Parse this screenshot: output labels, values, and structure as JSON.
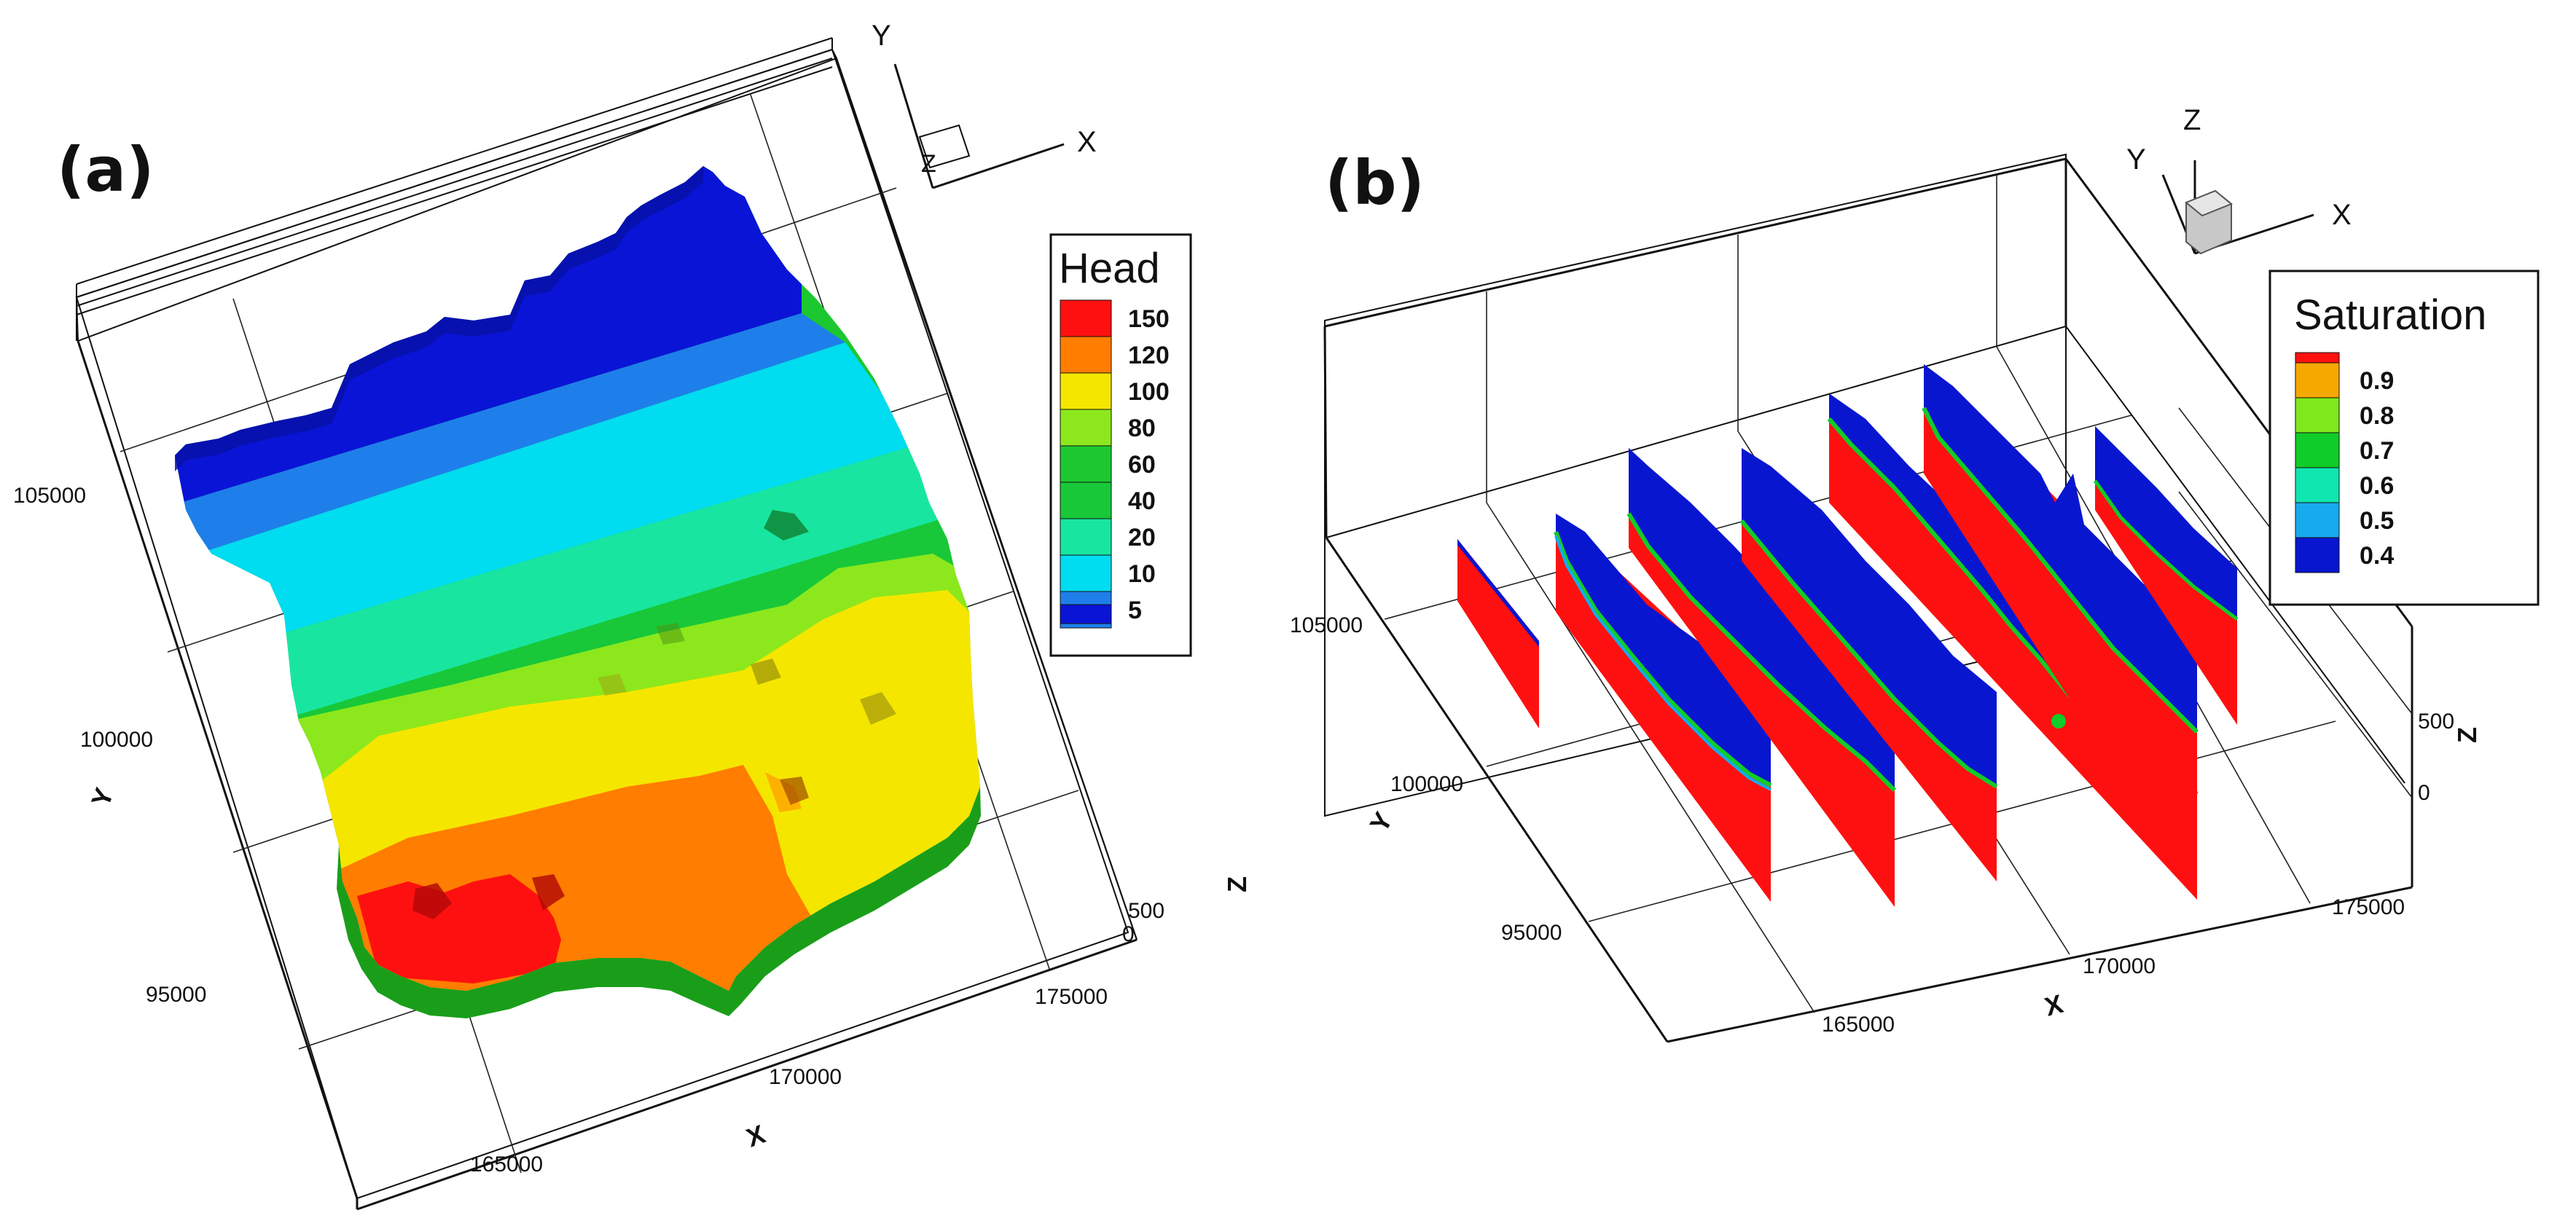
{
  "colors": {
    "dark_blue": "#0a14d6",
    "blue": "#1e7fea",
    "cyan": "#00dcf0",
    "aqua": "#00eed0",
    "teal": "#18e6a0",
    "green": "#1cc830",
    "yellow_green": "#8ce81c",
    "yellow": "#f5e600",
    "orange": "#ff7d00",
    "red": "#ff1010",
    "sat_orange": "#f5a800",
    "sat_ygreen": "#7ee81c",
    "sat_green": "#10cc28",
    "sat_teal": "#10e6b0",
    "sat_blue": "#16aaee",
    "sat_dblue": "#0816d0",
    "bed_green": "#1a9e1a"
  },
  "panel_a": {
    "label": "(a)",
    "legend": {
      "title": "Head",
      "entries": [
        {
          "label": "150",
          "color": "#ff1010"
        },
        {
          "label": "120",
          "color": "#ff7d00"
        },
        {
          "label": "100",
          "color": "#f5e600"
        },
        {
          "label": "80",
          "color": "#8ce81c"
        },
        {
          "label": "60",
          "color": "#1cc830"
        },
        {
          "label": "40",
          "color": "#18c838"
        },
        {
          "label": "20",
          "color": "#18e6a0"
        },
        {
          "label": "10",
          "color": "#00dcf0"
        },
        {
          "label": "5",
          "color": "#1e7fea"
        }
      ],
      "bottom_color": "#0a14d6"
    },
    "x_title": "X",
    "y_title": "Y",
    "z_title": "Z",
    "x_ticks": [
      "165000",
      "170000",
      "175000"
    ],
    "y_ticks": [
      "95000",
      "100000",
      "105000"
    ],
    "z_ticks": [
      "500",
      "0"
    ],
    "triad": {
      "x": "X",
      "y": "Y",
      "z": "Z"
    }
  },
  "panel_b": {
    "label": "(b)",
    "legend": {
      "title": "Saturation",
      "entries": [
        {
          "label": "0.9",
          "color": "#f5a800"
        },
        {
          "label": "0.8",
          "color": "#7ee81c"
        },
        {
          "label": "0.7",
          "color": "#10cc28"
        },
        {
          "label": "0.6",
          "color": "#10e6b0"
        },
        {
          "label": "0.5",
          "color": "#16aaee"
        },
        {
          "label": "0.4",
          "color": "#0816d0"
        }
      ],
      "top_color": "#ff1010"
    },
    "x_title": "X",
    "y_title": "Y",
    "z_title": "Z",
    "x_ticks": [
      "165000",
      "170000",
      "175000"
    ],
    "y_ticks": [
      "95000",
      "100000",
      "105000"
    ],
    "z_ticks": [
      "500",
      "0"
    ],
    "triad": {
      "x": "X",
      "y": "Y",
      "z": "Z"
    }
  }
}
